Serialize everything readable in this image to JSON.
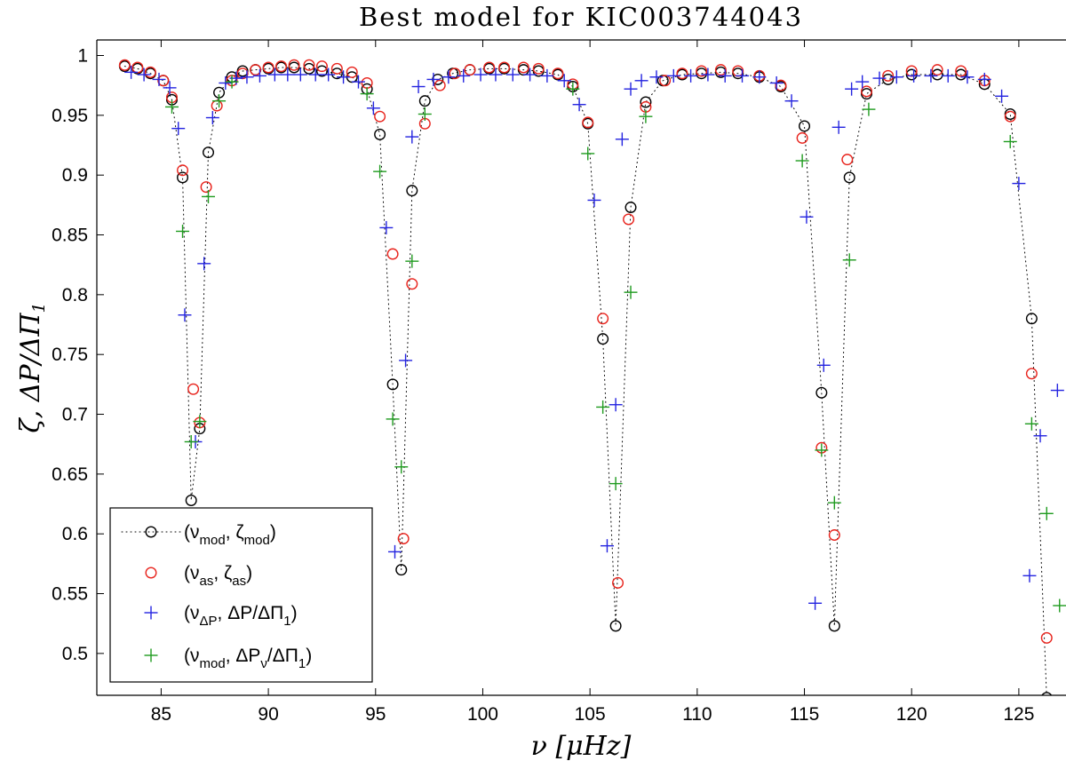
{
  "chart_data": {
    "type": "scatter",
    "title": "Best model for KIC003744043",
    "xlabel": "ν [μHz]",
    "ylabel": "ζ, ΔP/ΔΠ",
    "ylabel_sub": "1",
    "xlim": [
      82,
      127.2
    ],
    "ylim": [
      0.465,
      1.013
    ],
    "xticks": [
      85,
      90,
      95,
      100,
      105,
      110,
      115,
      120,
      125
    ],
    "yticks": [
      0.5,
      0.55,
      0.6,
      0.65,
      0.7,
      0.75,
      0.8,
      0.85,
      0.9,
      0.95,
      1
    ],
    "xtick_labels": [
      "85",
      "90",
      "95",
      "100",
      "105",
      "110",
      "115",
      "120",
      "125"
    ],
    "ytick_labels": [
      "0.5",
      "0.55",
      "0.6",
      "0.65",
      "0.7",
      "0.75",
      "0.8",
      "0.85",
      "0.9",
      "0.95",
      "1"
    ],
    "grid": false,
    "legend_position": "bottom-left",
    "series": [
      {
        "name": "(ν_mod, ζ_mod)",
        "label_main": "(ν",
        "label_sub1": "mod",
        "label_mid": ", ζ",
        "label_sub2": "mod",
        "label_end": ")",
        "marker": "circle",
        "color": "#000000",
        "dotted_line": true,
        "x": [
          83.3,
          83.9,
          84.5,
          85.1,
          85.5,
          86.0,
          86.4,
          86.8,
          87.2,
          87.7,
          88.3,
          88.8,
          89.4,
          90.0,
          90.6,
          91.2,
          91.9,
          92.5,
          93.2,
          93.9,
          94.6,
          95.2,
          95.8,
          96.2,
          96.7,
          97.3,
          97.9,
          98.6,
          99.4,
          100.3,
          101.0,
          101.9,
          102.6,
          103.5,
          104.2,
          104.9,
          105.6,
          106.2,
          106.9,
          107.6,
          108.4,
          109.3,
          110.2,
          111.1,
          111.9,
          112.9,
          113.9,
          115.0,
          115.8,
          116.4,
          117.1,
          117.9,
          118.9,
          120.0,
          121.2,
          122.3,
          123.4,
          124.6,
          125.6,
          126.3
        ],
        "y": [
          0.991,
          0.989,
          0.985,
          0.979,
          0.963,
          0.898,
          0.628,
          0.688,
          0.919,
          0.969,
          0.982,
          0.987,
          0.988,
          0.989,
          0.99,
          0.99,
          0.989,
          0.987,
          0.985,
          0.982,
          0.972,
          0.934,
          0.725,
          0.57,
          0.887,
          0.962,
          0.98,
          0.985,
          0.988,
          0.989,
          0.989,
          0.988,
          0.987,
          0.984,
          0.974,
          0.943,
          0.763,
          0.523,
          0.873,
          0.961,
          0.979,
          0.984,
          0.985,
          0.986,
          0.985,
          0.982,
          0.974,
          0.941,
          0.718,
          0.523,
          0.898,
          0.968,
          0.98,
          0.984,
          0.984,
          0.984,
          0.976,
          0.951,
          0.78,
          0.463
        ]
      },
      {
        "name": "(ν_as, ζ_as)",
        "label_main": "(ν",
        "label_sub1": "as",
        "label_mid": ", ζ",
        "label_sub2": "as",
        "label_end": ")",
        "marker": "circle",
        "color": "#e8231c",
        "dotted_line": false,
        "x": [
          83.3,
          83.9,
          84.5,
          85.1,
          85.5,
          86.0,
          86.5,
          86.8,
          87.1,
          87.6,
          88.3,
          88.8,
          89.4,
          90.0,
          90.6,
          91.2,
          91.9,
          92.5,
          93.2,
          93.9,
          94.6,
          95.2,
          95.8,
          96.3,
          96.7,
          97.3,
          98.0,
          98.7,
          99.4,
          100.3,
          101.0,
          101.9,
          102.6,
          103.5,
          104.2,
          104.9,
          105.6,
          106.3,
          106.8,
          107.6,
          108.5,
          109.3,
          110.2,
          111.1,
          111.9,
          112.9,
          113.9,
          114.9,
          115.8,
          116.4,
          117.0,
          117.9,
          118.9,
          120.0,
          121.2,
          122.3,
          123.4,
          124.6,
          125.6,
          126.3
        ],
        "y": [
          0.992,
          0.99,
          0.986,
          0.979,
          0.965,
          0.904,
          0.721,
          0.693,
          0.89,
          0.958,
          0.979,
          0.985,
          0.988,
          0.99,
          0.991,
          0.992,
          0.992,
          0.991,
          0.989,
          0.986,
          0.977,
          0.949,
          0.834,
          0.596,
          0.809,
          0.943,
          0.975,
          0.985,
          0.988,
          0.99,
          0.99,
          0.99,
          0.989,
          0.985,
          0.976,
          0.944,
          0.78,
          0.559,
          0.863,
          0.957,
          0.979,
          0.985,
          0.987,
          0.988,
          0.987,
          0.983,
          0.975,
          0.931,
          0.672,
          0.599,
          0.913,
          0.97,
          0.983,
          0.987,
          0.988,
          0.987,
          0.979,
          0.949,
          0.734,
          0.513
        ]
      },
      {
        "name": "(ν_ΔP, ΔP/ΔΠ_1)",
        "label_main": "(ν",
        "label_sub1": "ΔP",
        "label_mid": ", ΔP/ΔΠ",
        "label_sub2": "1",
        "label_end": ")",
        "marker": "plus",
        "color": "#2424e0",
        "dotted_line": false,
        "x": [
          83.6,
          84.2,
          84.9,
          85.4,
          85.8,
          86.1,
          86.6,
          87.0,
          87.4,
          88.0,
          88.5,
          89.0,
          89.6,
          90.3,
          90.9,
          91.5,
          92.2,
          92.8,
          93.5,
          94.2,
          94.9,
          95.5,
          95.9,
          96.4,
          96.7,
          97.0,
          97.7,
          98.4,
          99.1,
          99.9,
          100.6,
          101.4,
          102.2,
          103.0,
          103.8,
          104.5,
          105.2,
          105.8,
          106.2,
          106.5,
          106.9,
          107.4,
          108.1,
          108.9,
          109.7,
          110.5,
          111.3,
          112.1,
          112.9,
          113.7,
          114.4,
          115.1,
          115.5,
          115.9,
          116.6,
          117.2,
          117.7,
          118.5,
          119.3,
          120.1,
          120.9,
          121.7,
          122.6,
          123.4,
          124.2,
          125.0,
          125.5,
          126.0,
          126.8
        ],
        "y": [
          0.986,
          0.984,
          0.98,
          0.973,
          0.939,
          0.783,
          0.677,
          0.826,
          0.948,
          0.977,
          0.981,
          0.982,
          0.983,
          0.984,
          0.984,
          0.984,
          0.984,
          0.984,
          0.982,
          0.978,
          0.956,
          0.856,
          0.585,
          0.745,
          0.932,
          0.974,
          0.98,
          0.982,
          0.983,
          0.984,
          0.984,
          0.984,
          0.984,
          0.983,
          0.979,
          0.959,
          0.879,
          0.59,
          0.708,
          0.93,
          0.972,
          0.979,
          0.982,
          0.983,
          0.983,
          0.984,
          0.983,
          0.983,
          0.982,
          0.977,
          0.962,
          0.865,
          0.542,
          0.741,
          0.94,
          0.972,
          0.978,
          0.981,
          0.982,
          0.983,
          0.983,
          0.983,
          0.982,
          0.98,
          0.966,
          0.893,
          0.565,
          0.682,
          0.72
        ]
      },
      {
        "name": "(ν_mod, ΔP_ν/ΔΠ_1)",
        "label_main": "(ν",
        "label_sub1": "mod",
        "label_mid": ", ΔP",
        "label_sub2": "ν",
        "label_mid2": "/ΔΠ",
        "label_sub3": "1",
        "label_end": ")",
        "marker": "plus",
        "color": "#1f9b1f",
        "dotted_line": false,
        "x": [
          85.5,
          86.0,
          86.4,
          86.8,
          87.2,
          87.7,
          88.3,
          94.6,
          95.2,
          95.8,
          96.2,
          96.7,
          97.3,
          104.2,
          104.9,
          105.6,
          106.2,
          106.9,
          107.6,
          114.9,
          115.8,
          116.4,
          117.1,
          118.0,
          124.6,
          125.6,
          126.3,
          126.9
        ],
        "y": [
          0.957,
          0.853,
          0.677,
          0.694,
          0.882,
          0.962,
          0.978,
          0.968,
          0.903,
          0.696,
          0.656,
          0.828,
          0.951,
          0.972,
          0.918,
          0.706,
          0.642,
          0.802,
          0.949,
          0.912,
          0.67,
          0.626,
          0.829,
          0.955,
          0.928,
          0.692,
          0.617,
          0.54
        ]
      }
    ]
  }
}
